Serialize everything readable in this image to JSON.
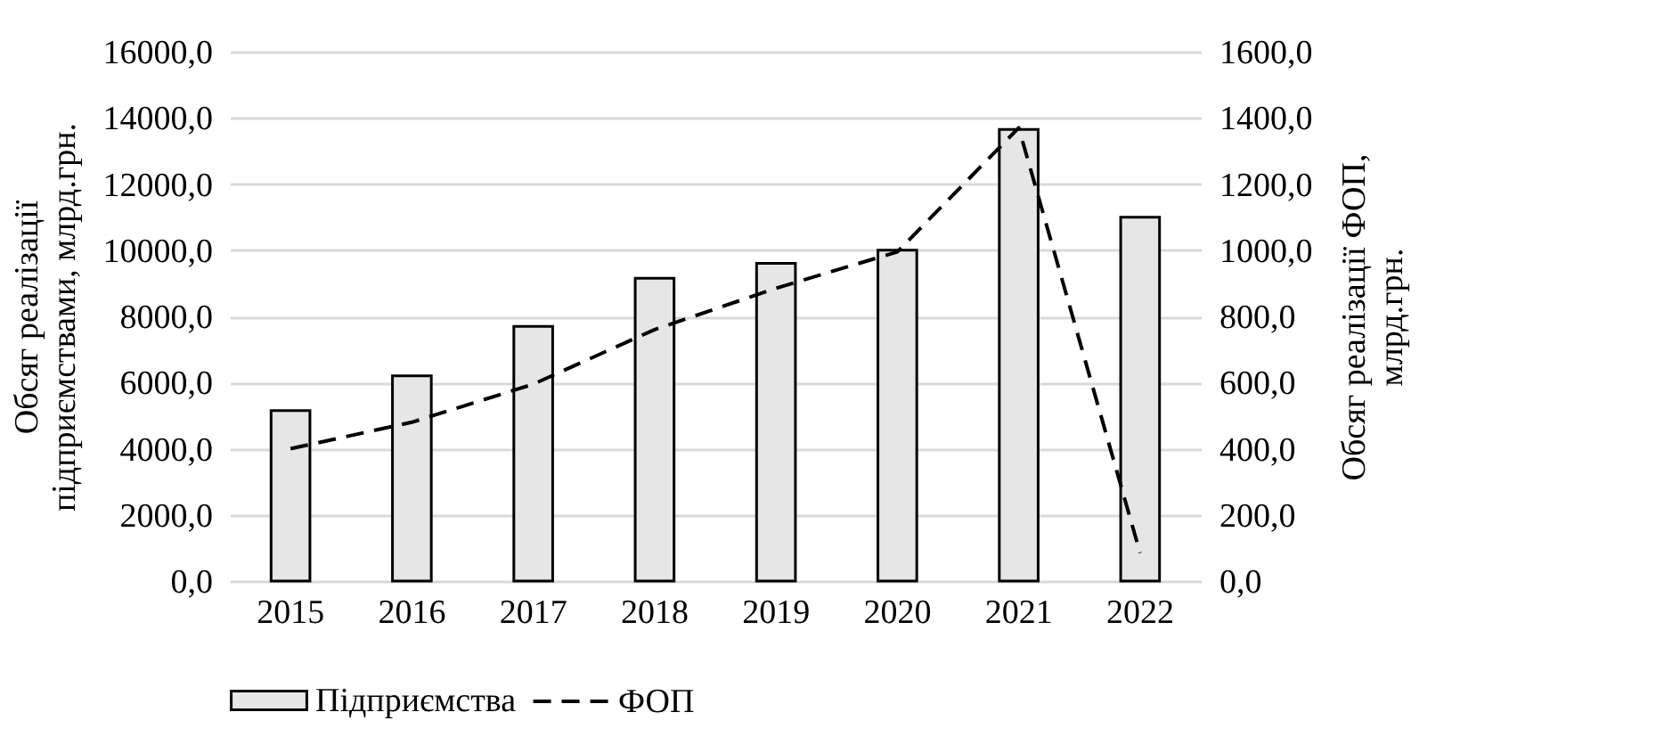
{
  "chart_data": {
    "type": "bar",
    "categories": [
      "2015",
      "2016",
      "2017",
      "2018",
      "2019",
      "2020",
      "2021",
      "2022"
    ],
    "series": [
      {
        "name": "Підприємства",
        "color": "#e6e6e6",
        "values": [
          5150,
          6200,
          7700,
          9150,
          9600,
          10000,
          13650,
          11000
        ]
      },
      {
        "name": "ФОП",
        "type": "line",
        "axis": "y2",
        "color": "#000000",
        "line_style": "dashed",
        "marker": "none",
        "values": [
          400,
          480,
          595,
          760,
          885,
          995,
          1370,
          85
        ]
      }
    ],
    "ylabel": "Обсяг реалізації\nпідприємствами, млрд.грн.",
    "y2label": "Обсяг реалізації ФОП,\nмлрд.грн.",
    "ylim": [
      0,
      16000
    ],
    "yticks": [
      {
        "value": 0,
        "label": "0,0"
      },
      {
        "value": 2000,
        "label": "2000,0"
      },
      {
        "value": 4000,
        "label": "4000,0"
      },
      {
        "value": 6000,
        "label": "6000,0"
      },
      {
        "value": 8000,
        "label": "8000,0"
      },
      {
        "value": 10000,
        "label": "10000,0"
      },
      {
        "value": 12000,
        "label": "12000,0"
      },
      {
        "value": 14000,
        "label": "14000,0"
      },
      {
        "value": 16000,
        "label": "16000,0"
      }
    ],
    "y2lim": [
      0,
      1600
    ],
    "y2ticks": [
      {
        "value": 0,
        "label": "0,0"
      },
      {
        "value": 200,
        "label": "200,0"
      },
      {
        "value": 400,
        "label": "400,0"
      },
      {
        "value": 600,
        "label": "600,0"
      },
      {
        "value": 800,
        "label": "800,0"
      },
      {
        "value": 1000,
        "label": "1000,0"
      },
      {
        "value": 1200,
        "label": "1200,0"
      },
      {
        "value": 1400,
        "label": "1400,0"
      },
      {
        "value": 1600,
        "label": "1600,0"
      }
    ],
    "grid": "y",
    "legend": "bottom"
  }
}
